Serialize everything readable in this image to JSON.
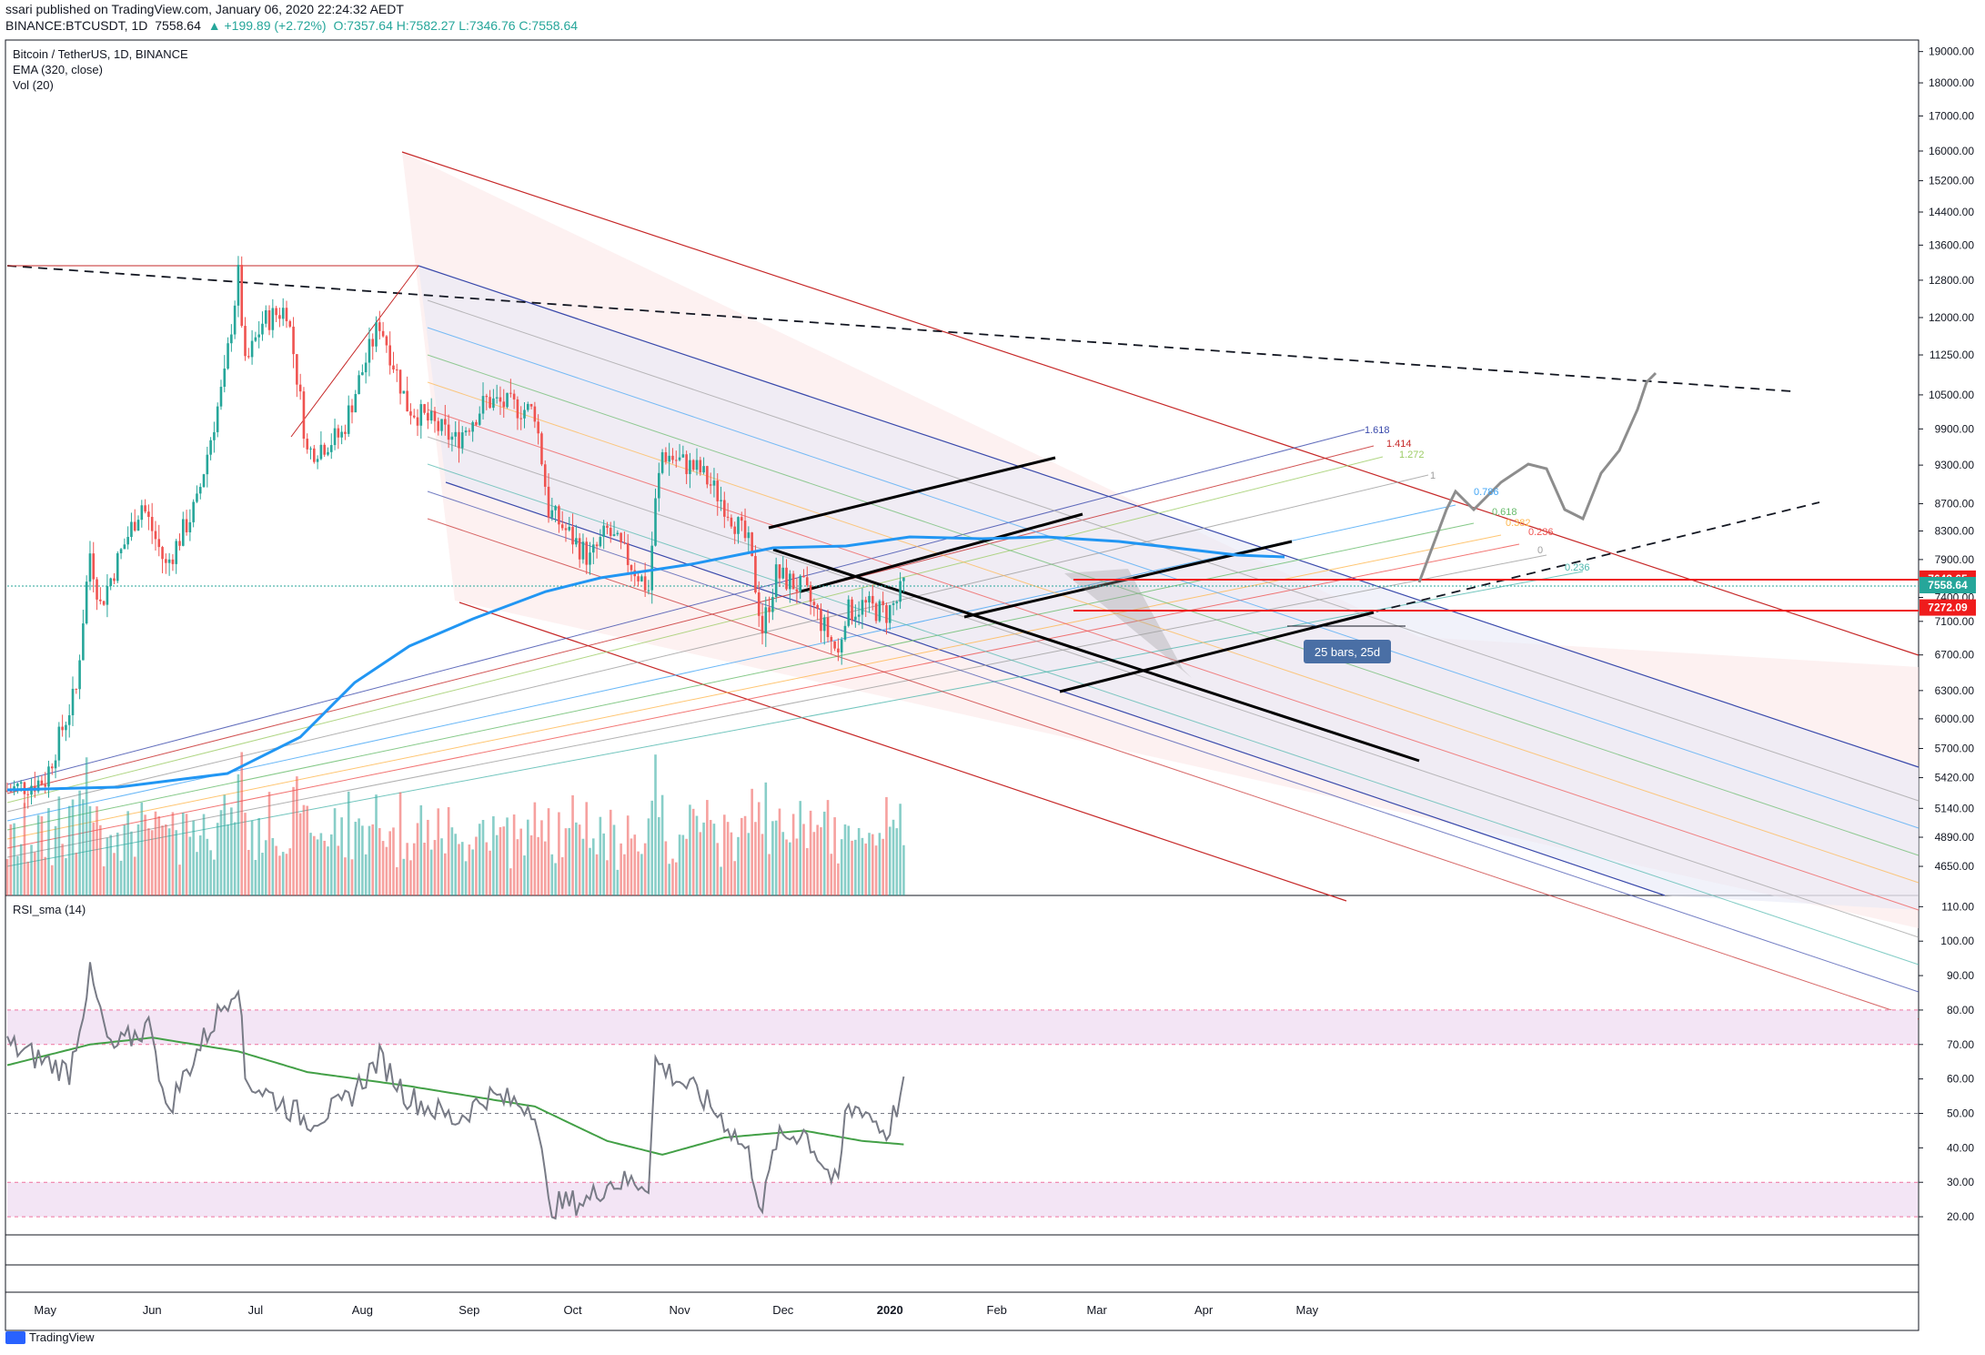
{
  "header": {
    "line1": "ssari published on TradingView.com, January 06, 2020 22:24:32 AEDT",
    "symbol": "BINANCE:BTCUSDT, 1D",
    "last": "7558.64",
    "change": "▲ +199.89 (+2.72%)",
    "ohlc": "O:7357.64 H:7582.27 L:7346.76 C:7558.64"
  },
  "legend": {
    "title": "Bitcoin / TetherUS, 1D, BINANCE",
    "ema": "EMA (320, close)",
    "vol": "Vol (20)",
    "rsi": "RSI_sma (14)"
  },
  "footer": {
    "brand": "TradingView"
  },
  "colors": {
    "up": "#26a69a",
    "down": "#ef5350",
    "ema": "#2196f3",
    "rsi": "#787b86",
    "rsi_sma": "#43a047",
    "rsi_band": "#f3e5f5"
  },
  "chart_data": [
    {
      "type": "candlestick",
      "title": "Bitcoin / TetherUS, 1D, BINANCE",
      "ylim": [
        4450,
        19200
      ],
      "scale": "log",
      "y_ticks": [
        "19000.00",
        "18000.00",
        "17000.00",
        "16000.00",
        "15200.00",
        "14400.00",
        "13600.00",
        "12800.00",
        "12000.00",
        "11250.00",
        "10500.00",
        "9900.00",
        "9300.00",
        "8700.00",
        "8300.00",
        "7900.00",
        "7400.00",
        "7100.00",
        "6700.00",
        "6300.00",
        "6000.00",
        "5700.00",
        "5420.00",
        "5140.00",
        "4890.00",
        "4650.00"
      ],
      "x_ticks": [
        "May",
        "Jun",
        "Jul",
        "Aug",
        "Sep",
        "Oct",
        "Nov",
        "Dec",
        "2020",
        "Feb",
        "Mar",
        "Apr",
        "May"
      ],
      "price_labels": [
        {
          "value": 7643.65,
          "label": "7643.65",
          "color": "#ef1c1c"
        },
        {
          "value": 7558.64,
          "label": "7558.64",
          "color": "#26a69a"
        },
        {
          "value": 7272.09,
          "label": "7272.09",
          "color": "#ef1c1c"
        }
      ],
      "close_keypoints": [
        [
          "2019-04-20",
          5300
        ],
        [
          "2019-05-01",
          5400
        ],
        [
          "2019-05-10",
          6300
        ],
        [
          "2019-05-14",
          8000
        ],
        [
          "2019-05-17",
          7300
        ],
        [
          "2019-05-29",
          8700
        ],
        [
          "2019-06-05",
          7800
        ],
        [
          "2019-06-14",
          8700
        ],
        [
          "2019-06-22",
          10800
        ],
        [
          "2019-06-26",
          12900
        ],
        [
          "2019-06-28",
          11000
        ],
        [
          "2019-07-03",
          11900
        ],
        [
          "2019-07-10",
          12200
        ],
        [
          "2019-07-16",
          9500
        ],
        [
          "2019-07-26",
          9800
        ],
        [
          "2019-08-06",
          11900
        ],
        [
          "2019-08-14",
          10300
        ],
        [
          "2019-08-28",
          9700
        ],
        [
          "2019-09-06",
          10400
        ],
        [
          "2019-09-20",
          10200
        ],
        [
          "2019-09-24",
          8600
        ],
        [
          "2019-10-06",
          7900
        ],
        [
          "2019-10-11",
          8300
        ],
        [
          "2019-10-23",
          7500
        ],
        [
          "2019-10-25",
          8700
        ],
        [
          "2019-10-27",
          9500
        ],
        [
          "2019-11-07",
          9200
        ],
        [
          "2019-11-14",
          8700
        ],
        [
          "2019-11-21",
          8100
        ],
        [
          "2019-11-25",
          7000
        ],
        [
          "2019-11-29",
          7700
        ],
        [
          "2019-12-07",
          7500
        ],
        [
          "2019-12-17",
          6700
        ],
        [
          "2019-12-19",
          7200
        ],
        [
          "2019-12-24",
          7300
        ],
        [
          "2019-12-31",
          7200
        ],
        [
          "2020-01-03",
          7350
        ],
        [
          "2020-01-05",
          7558.64
        ]
      ],
      "projection_label": "25 bars, 25d",
      "fib_labels": [
        "1.618",
        "1.414",
        "1.272",
        "1",
        "0.786",
        "0.618",
        "0.382",
        "0.236",
        "0",
        "0.236"
      ]
    },
    {
      "type": "line",
      "title": "RSI_sma (14)",
      "ylim": [
        15,
        113
      ],
      "y_ticks": [
        "110.00",
        "100.00",
        "90.00",
        "80.00",
        "70.00",
        "60.00",
        "50.00",
        "40.00",
        "30.00",
        "20.00"
      ],
      "bands": [
        [
          70,
          80
        ],
        [
          20,
          30
        ]
      ],
      "series": [
        {
          "values_keypoints": [
            [
              "2019-04-20",
              70
            ],
            [
              "2019-05-08",
              62
            ],
            [
              "2019-05-14",
              90
            ],
            [
              "2019-05-20",
              68
            ],
            [
              "2019-06-01",
              76
            ],
            [
              "2019-06-05",
              50
            ],
            [
              "2019-06-14",
              68
            ],
            [
              "2019-06-26",
              89
            ],
            [
              "2019-06-28",
              60
            ],
            [
              "2019-07-16",
              48
            ],
            [
              "2019-07-26",
              52
            ],
            [
              "2019-08-06",
              66
            ],
            [
              "2019-08-14",
              55
            ],
            [
              "2019-08-28",
              48
            ],
            [
              "2019-09-06",
              55
            ],
            [
              "2019-09-20",
              52
            ],
            [
              "2019-09-24",
              23
            ],
            [
              "2019-10-06",
              25
            ],
            [
              "2019-10-11",
              30
            ],
            [
              "2019-10-23",
              30
            ],
            [
              "2019-10-25",
              65
            ],
            [
              "2019-11-07",
              55
            ],
            [
              "2019-11-14",
              48
            ],
            [
              "2019-11-21",
              38
            ],
            [
              "2019-11-25",
              22
            ],
            [
              "2019-11-29",
              42
            ],
            [
              "2019-12-07",
              45
            ],
            [
              "2019-12-17",
              28
            ],
            [
              "2019-12-19",
              50
            ],
            [
              "2019-12-24",
              52
            ],
            [
              "2019-12-31",
              44
            ],
            [
              "2020-01-03",
              52
            ],
            [
              "2020-01-05",
              57
            ]
          ]
        },
        {
          "values_keypoints": [
            [
              "2019-04-20",
              64
            ],
            [
              "2019-05-14",
              70
            ],
            [
              "2019-06-01",
              72
            ],
            [
              "2019-06-26",
              68
            ],
            [
              "2019-07-16",
              62
            ],
            [
              "2019-08-14",
              58
            ],
            [
              "2019-09-20",
              52
            ],
            [
              "2019-10-11",
              42
            ],
            [
              "2019-10-27",
              38
            ],
            [
              "2019-11-14",
              43
            ],
            [
              "2019-12-07",
              45
            ],
            [
              "2019-12-24",
              42
            ],
            [
              "2020-01-05",
              41
            ]
          ]
        }
      ]
    }
  ]
}
